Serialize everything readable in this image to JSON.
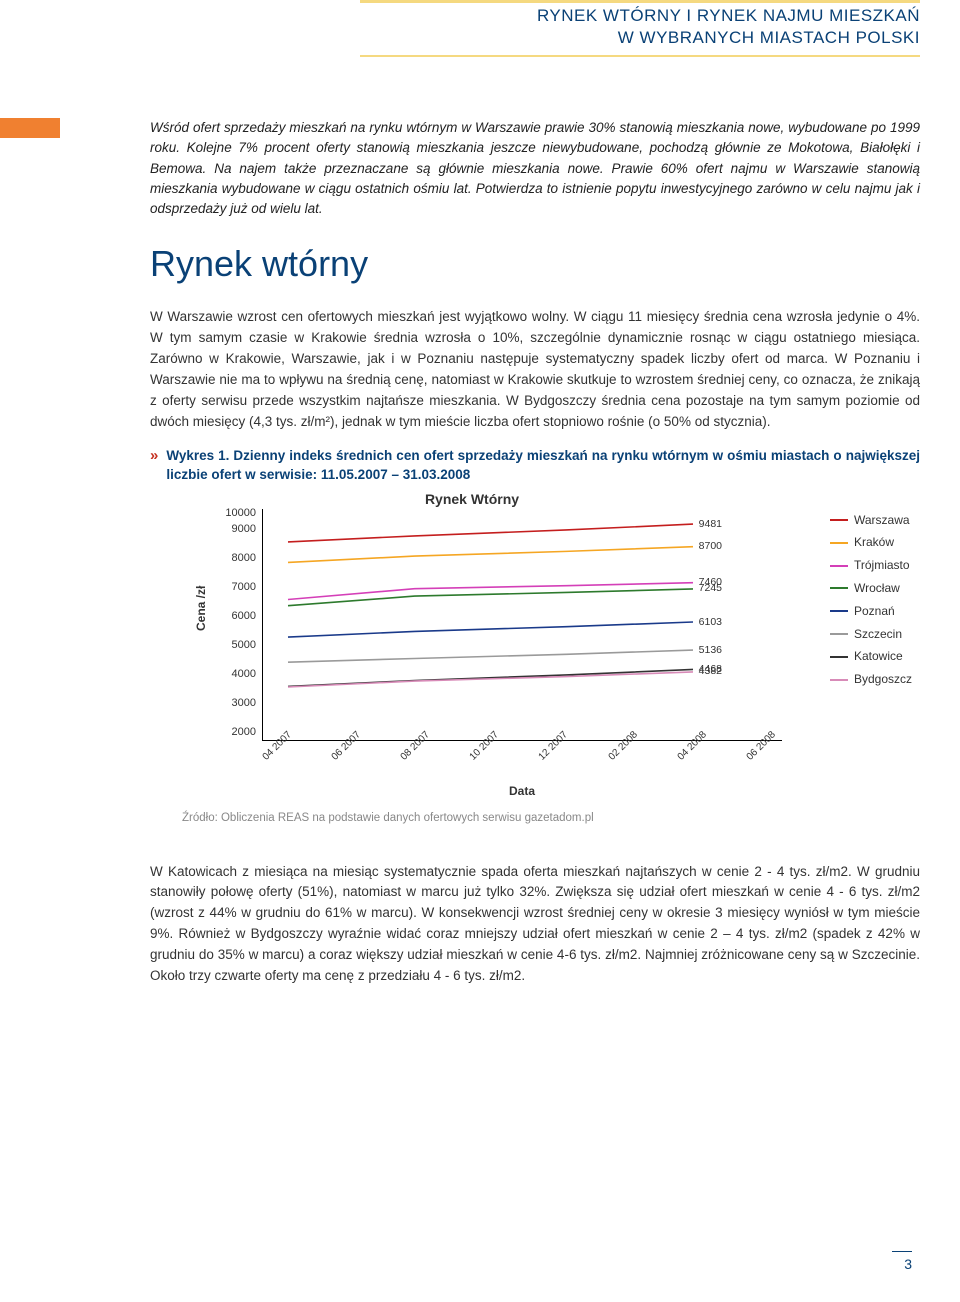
{
  "header": {
    "title_line1": "RYNEK WTÓRNY I RYNEK NAJMU MIESZKAŃ",
    "title_line2": "W WYBRANYCH MIASTACH POLSKI"
  },
  "intro": "Wśród ofert sprzedaży mieszkań na rynku wtórnym w Warszawie prawie 30% stanowią mieszkania nowe, wybudowane po 1999 roku. Kolejne 7% procent oferty stanowią mieszkania jeszcze niewybudowane, pochodzą głównie ze Mokotowa, Białołęki i Bemowa. Na najem także przeznaczane są głównie mieszkania nowe. Prawie 60% ofert najmu w Warszawie stanowią mieszkania wybudowane w ciągu ostatnich ośmiu lat. Potwierdza to istnienie popytu inwestycyjnego zarówno w celu najmu jak i odsprzedaży już od wielu lat.",
  "section_title": "Rynek wtórny",
  "para1": "W Warszawie wzrost cen ofertowych mieszkań jest wyjątkowo wolny. W ciągu 11 miesięcy średnia cena wzrosła jedynie o 4%. W tym samym czasie w Krakowie średnia wzrosła o 10%, szczególnie dynamicznie rosnąc w ciągu ostatniego miesiąca. Zarówno w Krakowie, Warszawie, jak i w Poznaniu następuje systematyczny spadek liczby ofert od marca. W Poznaniu i Warszawie nie ma to wpływu na średnią cenę, natomiast w Krakowie skutkuje to wzrostem średniej ceny, co oznacza, że znikają z oferty serwisu przede wszystkim najtańsze mieszkania. W Bydgoszczy średnia cena pozostaje na tym samym poziomie od dwóch miesięcy (4,3 tys. zł/m²), jednak w tym mieście liczba ofert stopniowo rośnie (o 50% od stycznia).",
  "chart_caption_prefix": "»",
  "chart_caption": "Wykres 1. Dzienny indeks średnich cen ofert sprzedaży mieszkań na rynku wtórnym w ośmiu miastach o największej liczbie ofert w serwisie: 11.05.2007 – 31.03.2008",
  "chart": {
    "title": "Rynek Wtórny",
    "ylabel": "Cena /zł",
    "xlabel": "Data",
    "ylim": [
      2000,
      10000
    ],
    "ytick_step": 1000,
    "yticks": [
      "10000",
      "9000",
      "8000",
      "7000",
      "6000",
      "5000",
      "4000",
      "3000",
      "2000"
    ],
    "xticks": [
      "04 2007",
      "06 2007",
      "08 2007",
      "10 2007",
      "12 2007",
      "02 2008",
      "04 2008",
      "06 2008"
    ],
    "background_color": "#ffffff",
    "series": [
      {
        "name": "Warszawa",
        "color": "#c41e1e",
        "end_value": 9481
      },
      {
        "name": "Kraków",
        "color": "#f5a623",
        "end_value": 8700
      },
      {
        "name": "Trójmiasto",
        "color": "#d43fb8",
        "end_value": 7460
      },
      {
        "name": "Wrocław",
        "color": "#2d7a2d",
        "end_value": 7245
      },
      {
        "name": "Poznań",
        "color": "#1a3a8a",
        "end_value": 6103
      },
      {
        "name": "Szczecin",
        "color": "#9a9a9a",
        "end_value": 5136
      },
      {
        "name": "Katowice",
        "color": "#333333",
        "end_value": 4468
      },
      {
        "name": "Bydgoszcz",
        "color": "#d88bb8",
        "end_value": 4382
      }
    ]
  },
  "source": "Źródło: Obliczenia REAS na podstawie danych ofertowych serwisu gazetadom.pl",
  "para2": "W Katowicach z miesiąca na miesiąc systematycznie spada oferta mieszkań najtańszych w cenie 2 - 4 tys. zł/m2. W grudniu stanowiły połowę oferty (51%), natomiast w marcu już tylko 32%. Zwiększa się udział ofert mieszkań w cenie 4 - 6 tys. zł/m2 (wzrost z 44% w grudniu do 61% w marcu). W konsekwencji wzrost średniej ceny w okresie 3 miesięcy wyniósł w tym mieście 9%. Również w Bydgoszczy wyraźnie widać coraz mniejszy udział ofert mieszkań w cenie 2 – 4 tys. zł/m2 (spadek z 42% w grudniu do 35% w marcu) a coraz większy udział mieszkań w cenie 4-6 tys. zł/m2. Najmniej zróżnicowane ceny są w Szczecinie. Około trzy czwarte oferty ma cenę z przedziału 4 - 6 tys. zł/m2.",
  "page_number": "3",
  "colors": {
    "header_text": "#0a4176",
    "accent_gold": "#f5d980",
    "orange_strip": "#f08030",
    "chevron": "#c53020"
  }
}
